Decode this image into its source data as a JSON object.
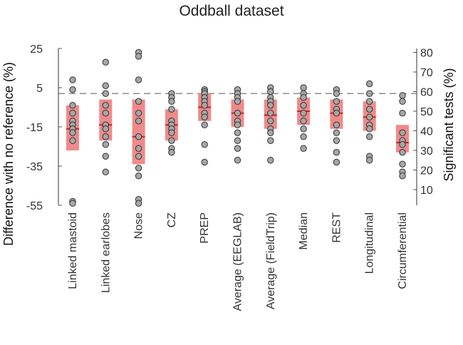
{
  "chart_data": {
    "type": "box-strip",
    "title": "Oddball dataset",
    "ylabel": "Difference with no reference (%)",
    "y2label": "Significant tests (%)",
    "ylim": [
      -55,
      25
    ],
    "yticks": [
      25,
      5,
      -15,
      -35,
      -55
    ],
    "y2lim": [
      2,
      82
    ],
    "y2ticks": [
      80,
      70,
      60,
      50,
      40,
      30,
      20,
      10
    ],
    "reference_line": 2,
    "categories": [
      "Linked mastoid",
      "Linked earlobes",
      "Nose",
      "CZ",
      "PREP",
      "Average (EEGLAB)",
      "Average (FieldTrip)",
      "Median",
      "REST",
      "Longitudinal",
      "Circumferential"
    ],
    "boxes": [
      {
        "q1": -27,
        "median": -16,
        "q3": -4
      },
      {
        "q1": -22,
        "median": -14,
        "q3": -1
      },
      {
        "q1": -34,
        "median": -20,
        "q3": -1
      },
      {
        "q1": -22,
        "median": -14,
        "q3": -6
      },
      {
        "q1": -12,
        "median": -5,
        "q3": 2
      },
      {
        "q1": -15,
        "median": -8,
        "q3": -1
      },
      {
        "q1": -16,
        "median": -9,
        "q3": -1
      },
      {
        "q1": -14,
        "median": -7,
        "q3": 0
      },
      {
        "q1": -16,
        "median": -8,
        "q3": -1
      },
      {
        "q1": -17,
        "median": -10,
        "q3": -2
      },
      {
        "q1": -28,
        "median": -23,
        "q3": -14
      }
    ],
    "points": [
      [
        9,
        4,
        -4,
        -8,
        -12,
        -14,
        -16,
        -18,
        -22,
        -53,
        -54
      ],
      [
        18,
        6,
        2,
        -4,
        -8,
        -14,
        -16,
        -20,
        -24,
        -30,
        -38
      ],
      [
        23,
        21,
        9,
        -2,
        -8,
        -12,
        -20,
        -26,
        -30,
        -36,
        -40,
        -52,
        -54
      ],
      [
        2,
        0,
        -2,
        -6,
        -12,
        -14,
        -16,
        -18,
        -22,
        -26,
        -28
      ],
      [
        4,
        3,
        2,
        0,
        -2,
        -4,
        -8,
        -10,
        -14,
        -24,
        -33
      ],
      [
        4,
        2,
        0,
        -2,
        -8,
        -12,
        -14,
        -18,
        -22,
        -26,
        -32
      ],
      [
        5,
        3,
        0,
        -2,
        -4,
        -8,
        -12,
        -16,
        -18,
        -22,
        -32
      ],
      [
        5,
        2,
        0,
        -4,
        -8,
        -12,
        -16,
        -20,
        -26
      ],
      [
        4,
        2,
        -2,
        -6,
        -8,
        -14,
        -18,
        -22,
        -28,
        -33
      ],
      [
        7,
        2,
        -2,
        -6,
        -10,
        -14,
        -16,
        -20,
        -30,
        -32
      ],
      [
        1,
        -2,
        -8,
        -18,
        -22,
        -24,
        -28,
        -34,
        -38,
        -40
      ]
    ],
    "colors": {
      "box": "#f08a8a",
      "median": "#d62020",
      "point_fill": "#a6a6a6",
      "point_stroke": "#333333",
      "reference": "#8c8c8c",
      "axis": "#555555"
    },
    "grid": false,
    "legend": "none"
  }
}
